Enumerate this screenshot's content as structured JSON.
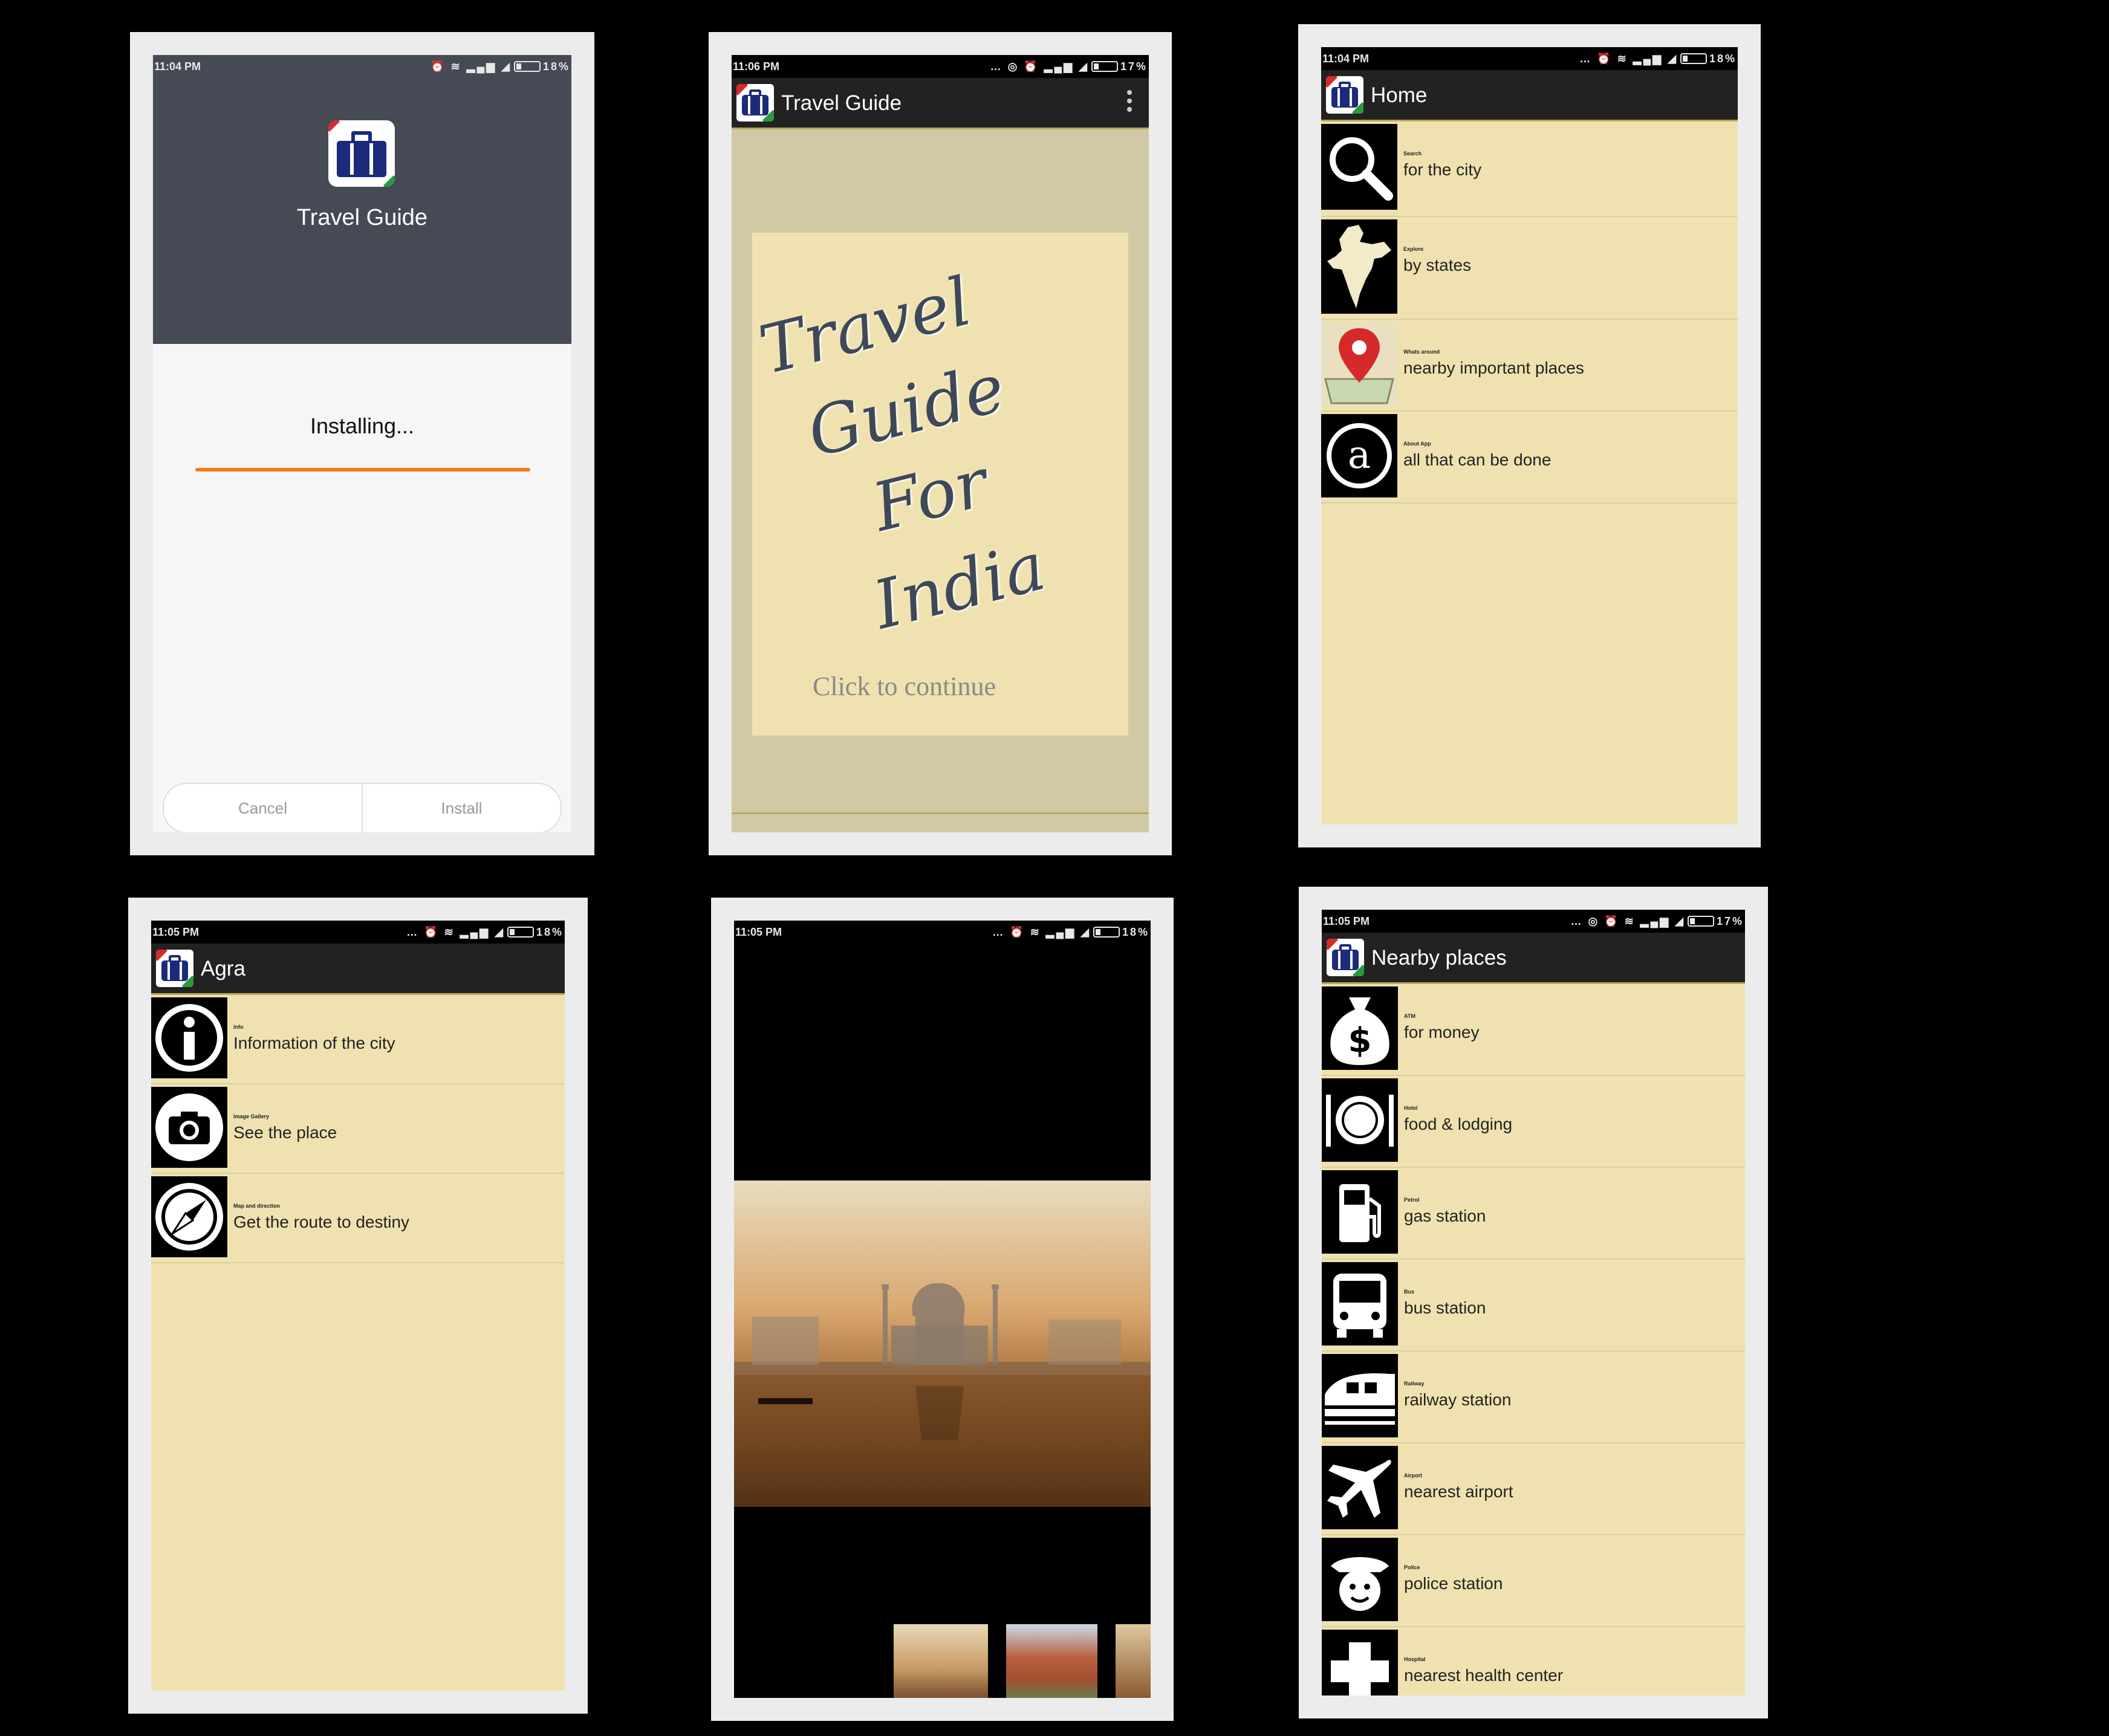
{
  "screen1": {
    "status_time": "11:04 PM",
    "status_battery": "18%",
    "app_name": "Travel Guide",
    "installing_text": "Installing...",
    "progress": 1.0,
    "cancel_label": "Cancel",
    "install_label": "Install"
  },
  "screen2": {
    "status_time": "11:06 PM",
    "status_battery": "17%",
    "title": "Travel Guide",
    "splash_lines": [
      "Travel",
      "Guide",
      "For",
      "India"
    ],
    "continue_label": "Click to continue"
  },
  "screen3": {
    "status_time": "11:04 PM",
    "status_battery": "18%",
    "title": "Home",
    "items": [
      {
        "small": "Search",
        "label": "for the city",
        "icon": "search-icon"
      },
      {
        "small": "Explore",
        "label": "by states",
        "icon": "india-map-icon"
      },
      {
        "small": "Whats around",
        "label": "nearby important places",
        "icon": "map-pin-icon"
      },
      {
        "small": "About App",
        "label": "all that can be done",
        "icon": "about-a-icon"
      }
    ]
  },
  "screen4": {
    "status_time": "11:05 PM",
    "status_battery": "18%",
    "title": "Agra",
    "items": [
      {
        "small": "Info",
        "label": "Information of the city",
        "icon": "info-icon"
      },
      {
        "small": "Image Gallery",
        "label": "See the place",
        "icon": "camera-icon"
      },
      {
        "small": "Map and direction",
        "label": "Get the route to destiny",
        "icon": "compass-icon"
      }
    ]
  },
  "screen5": {
    "status_time": "11:05 PM",
    "status_battery": "18%"
  },
  "screen6": {
    "status_time": "11:05 PM",
    "status_battery": "17%",
    "title": "Nearby places",
    "items": [
      {
        "small": "ATM",
        "label": "for money",
        "icon": "money-bag-icon"
      },
      {
        "small": "Hotel",
        "label": "food & lodging",
        "icon": "plate-icon"
      },
      {
        "small": "Petrol",
        "label": "gas station",
        "icon": "fuel-pump-icon"
      },
      {
        "small": "Bus",
        "label": "bus station",
        "icon": "bus-icon"
      },
      {
        "small": "Railway",
        "label": "railway station",
        "icon": "train-icon"
      },
      {
        "small": "Airport",
        "label": "nearest airport",
        "icon": "airplane-icon"
      },
      {
        "small": "Police",
        "label": "police station",
        "icon": "police-icon"
      },
      {
        "small": "Hospital",
        "label": "nearest health center",
        "icon": "hospital-cross-icon"
      }
    ]
  }
}
